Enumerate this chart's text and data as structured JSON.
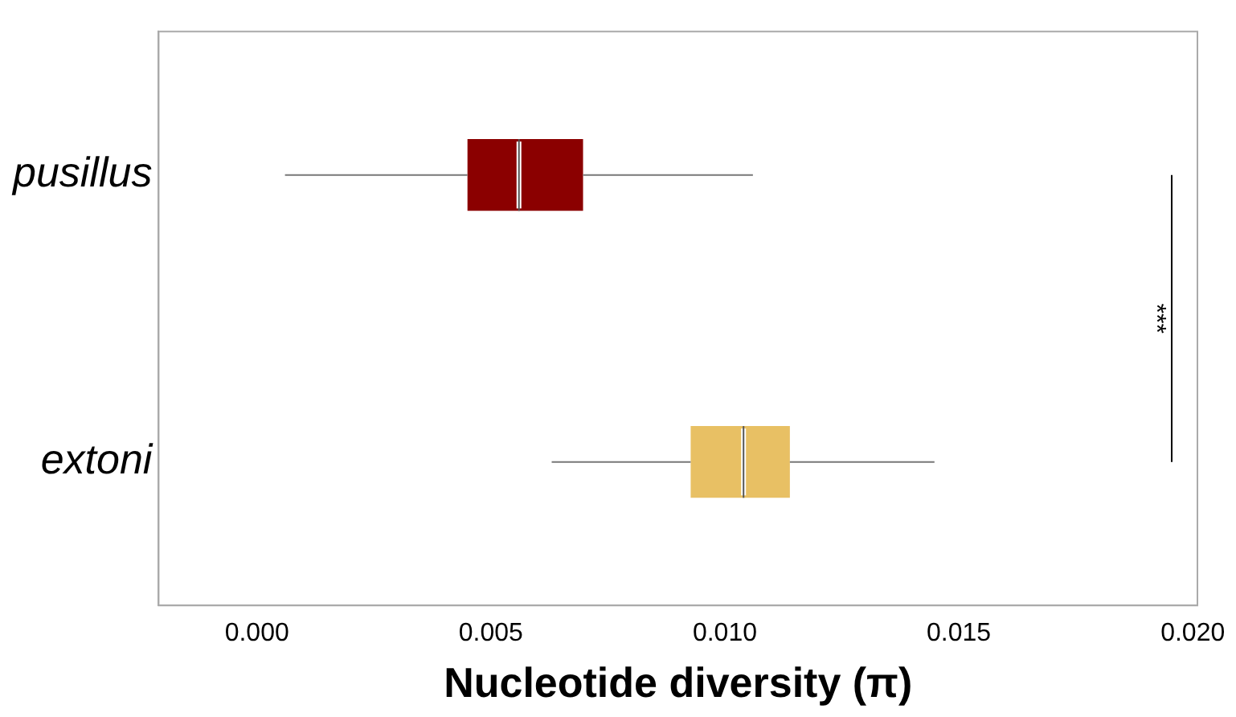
{
  "chart_data": {
    "type": "box",
    "orientation": "horizontal",
    "xlabel": "Nucleotide diversity (π)",
    "categories": [
      "pusillus",
      "extoni"
    ],
    "colors": [
      "#8b0000",
      "#e8c064"
    ],
    "boxes": [
      {
        "low": 0.0006,
        "q1": 0.0045,
        "median": 0.0056,
        "q3": 0.00697,
        "high": 0.0106
      },
      {
        "low": 0.0063,
        "q1": 0.00927,
        "median": 0.0104,
        "q3": 0.01139,
        "high": 0.01448
      }
    ],
    "xlim": [
      -0.0021,
      0.0201
    ],
    "xticks": [
      {
        "value": 0,
        "label": "0.000"
      },
      {
        "value": 0.005,
        "label": "0.005"
      },
      {
        "value": 0.01,
        "label": "0.010"
      },
      {
        "value": 0.015,
        "label": "0.015"
      },
      {
        "value": 0.02,
        "label": "0.020"
      }
    ],
    "grid": false,
    "legend": false,
    "annotations": [
      "***"
    ]
  }
}
